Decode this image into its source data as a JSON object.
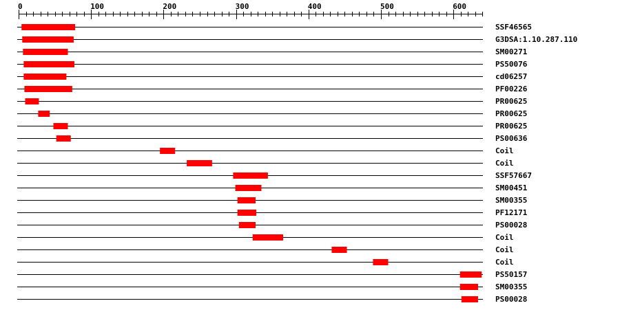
{
  "axis": {
    "min": 0,
    "max": 640,
    "major_step": 100,
    "minor_step": 10,
    "tick_labels": [
      "0",
      "100",
      "200",
      "300",
      "400",
      "500",
      "600"
    ]
  },
  "colors": {
    "feature": "#ff0000",
    "line": "#000000"
  },
  "features": [
    {
      "label": "SSF46565",
      "start": 4,
      "end": 78
    },
    {
      "label": "G3DSA:1.10.287.110",
      "start": 5,
      "end": 76
    },
    {
      "label": "SM00271",
      "start": 6,
      "end": 68
    },
    {
      "label": "PS50076",
      "start": 7,
      "end": 77
    },
    {
      "label": "cd06257",
      "start": 7,
      "end": 66
    },
    {
      "label": "PF00226",
      "start": 8,
      "end": 74
    },
    {
      "label": "PR00625",
      "start": 9,
      "end": 28
    },
    {
      "label": "PR00625",
      "start": 27,
      "end": 43
    },
    {
      "label": "PR00625",
      "start": 48,
      "end": 68
    },
    {
      "label": "PS00636",
      "start": 52,
      "end": 72
    },
    {
      "label": "Coil",
      "start": 195,
      "end": 216
    },
    {
      "label": "Coil",
      "start": 232,
      "end": 267
    },
    {
      "label": "SSF57667",
      "start": 296,
      "end": 344
    },
    {
      "label": "SM00451",
      "start": 299,
      "end": 335
    },
    {
      "label": "SM00355",
      "start": 302,
      "end": 327
    },
    {
      "label": "PF12171",
      "start": 302,
      "end": 328
    },
    {
      "label": "PS00028",
      "start": 304,
      "end": 327
    },
    {
      "label": "Coil",
      "start": 323,
      "end": 365
    },
    {
      "label": "Coil",
      "start": 432,
      "end": 453
    },
    {
      "label": "Coil",
      "start": 489,
      "end": 510
    },
    {
      "label": "PS50157",
      "start": 609,
      "end": 639
    },
    {
      "label": "SM00355",
      "start": 609,
      "end": 634
    },
    {
      "label": "PS00028",
      "start": 611,
      "end": 634
    }
  ]
}
